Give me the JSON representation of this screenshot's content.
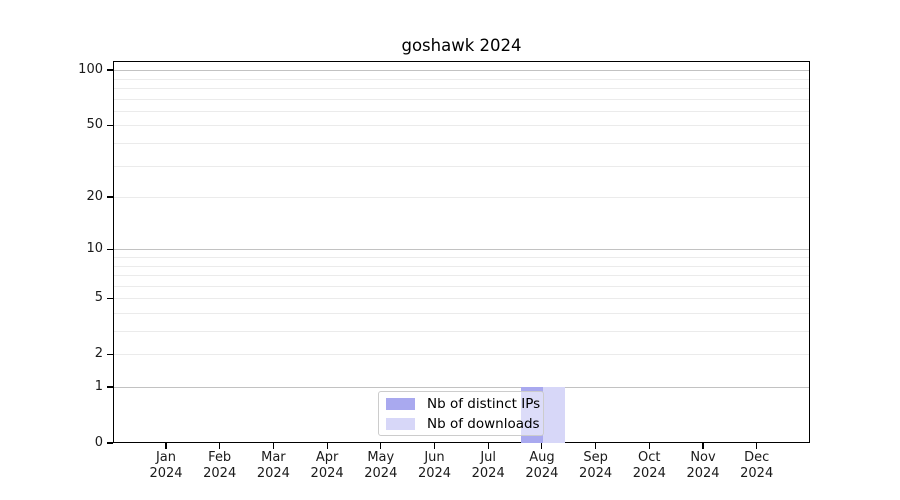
{
  "chart_data": {
    "type": "bar",
    "title": "goshawk 2024",
    "categories": [
      "Jan",
      "Feb",
      "Mar",
      "Apr",
      "May",
      "Jun",
      "Jul",
      "Aug",
      "Sep",
      "Oct",
      "Nov",
      "Dec"
    ],
    "x_year_label": "2024",
    "series": [
      {
        "name": "Nb of distinct IPs",
        "color": "#a9a9ef",
        "values": [
          0,
          0,
          0,
          0,
          0,
          0,
          0,
          1,
          0,
          0,
          0,
          0
        ]
      },
      {
        "name": "Nb of downloads",
        "color": "#d7d7f8",
        "values": [
          0,
          0,
          0,
          0,
          0,
          0,
          0,
          1,
          0,
          0,
          0,
          0
        ]
      }
    ],
    "y_scale": "log1p",
    "ylim": [
      0,
      100
    ],
    "y_major_ticks": [
      0,
      1,
      2,
      5,
      10,
      20,
      50,
      100
    ],
    "y_major_gridlines": [
      1,
      10,
      100
    ],
    "y_minor_gridlines": [
      2,
      3,
      4,
      5,
      6,
      7,
      8,
      9,
      20,
      30,
      40,
      50,
      60,
      70,
      80,
      90
    ],
    "grid_major_color": "#c2c2c2",
    "grid_minor_color": "#ebebeb",
    "legend_position": "lower center",
    "background_color": "#ffffff",
    "frame_color": "#000000"
  }
}
